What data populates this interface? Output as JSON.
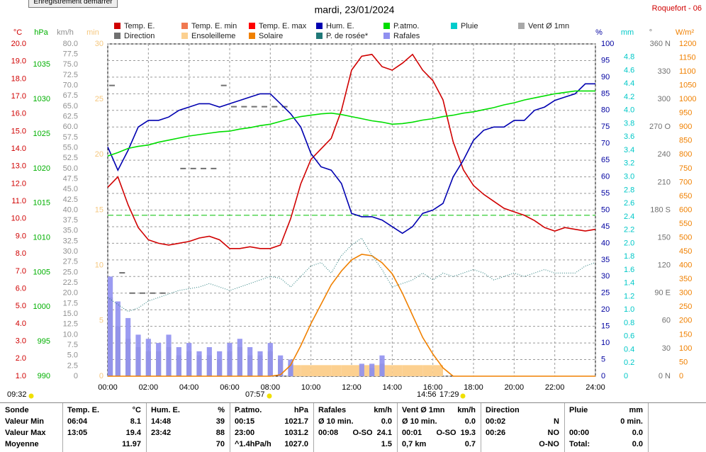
{
  "button": "Enregistrement demarrer",
  "station": "Roquefort - 06",
  "chart_data": {
    "type": "line",
    "title": "mardi, 23/01/2024",
    "x": [
      0,
      0.5,
      1,
      1.5,
      2,
      2.5,
      3,
      3.5,
      4,
      4.5,
      5,
      5.5,
      6,
      6.5,
      7,
      7.5,
      8,
      8.5,
      9,
      9.5,
      10,
      10.5,
      11,
      11.5,
      12,
      12.5,
      13,
      13.5,
      14,
      14.5,
      15,
      15.5,
      16,
      16.5,
      17,
      17.5,
      18,
      18.5,
      19,
      19.5,
      20,
      20.5,
      21,
      21.5,
      22,
      22.5,
      23,
      23.5,
      24
    ],
    "xlim": [
      0,
      24
    ],
    "xticks": [
      {
        "value": 0,
        "label": "00:00"
      },
      {
        "value": 2,
        "label": "02:00"
      },
      {
        "value": 4,
        "label": "04:00"
      },
      {
        "value": 6,
        "label": "06:00"
      },
      {
        "value": 8,
        "label": "08:00"
      },
      {
        "value": 10,
        "label": "10:00"
      },
      {
        "value": 12,
        "label": "12:00"
      },
      {
        "value": 14,
        "label": "14:00"
      },
      {
        "value": 16,
        "label": "16:00"
      },
      {
        "value": 18,
        "label": "18:00"
      },
      {
        "value": 20,
        "label": "20:00"
      },
      {
        "value": 22,
        "label": "22:00"
      },
      {
        "value": 24,
        "label": "24:00"
      }
    ],
    "grid": true,
    "axes": {
      "temp": {
        "label": "°C",
        "color": "#d00000",
        "lim": [
          1,
          20
        ],
        "ticks": [
          {
            "value": 1,
            "label": "1.0"
          },
          {
            "value": 2,
            "label": "2.0"
          },
          {
            "value": 3,
            "label": "3.0"
          },
          {
            "value": 4,
            "label": "4.0"
          },
          {
            "value": 5,
            "label": "5.0"
          },
          {
            "value": 6,
            "label": "6.0"
          },
          {
            "value": 7,
            "label": "7.0"
          },
          {
            "value": 8,
            "label": "8.0"
          },
          {
            "value": 9,
            "label": "9.0"
          },
          {
            "value": 10,
            "label": "10.0"
          },
          {
            "value": 11,
            "label": "11.0"
          },
          {
            "value": 12,
            "label": "12.0"
          },
          {
            "value": 13,
            "label": "13.0"
          },
          {
            "value": 14,
            "label": "14.0"
          },
          {
            "value": 15,
            "label": "15.0"
          },
          {
            "value": 16,
            "label": "16.0"
          },
          {
            "value": 17,
            "label": "17.0"
          },
          {
            "value": 18,
            "label": "18.0"
          },
          {
            "value": 19,
            "label": "19.0"
          },
          {
            "value": 20,
            "label": "20.0"
          }
        ]
      },
      "press": {
        "label": "hPa",
        "color": "#00b000",
        "lim": [
          990,
          1038
        ],
        "ticks": [
          990,
          995,
          1000,
          1005,
          1010,
          1015,
          1020,
          1025,
          1030,
          1035
        ]
      },
      "wind": {
        "label": "km/h",
        "color": "#909090",
        "lim": [
          0,
          80
        ],
        "ticks": [
          0,
          2.5,
          {
            "value": 5,
            "label": "5.0"
          },
          7.5,
          {
            "value": 10,
            "label": "10.0"
          },
          12.5,
          {
            "value": 15,
            "label": "15.0"
          },
          17.5,
          {
            "value": 20,
            "label": "20.0"
          },
          22.5,
          {
            "value": 25,
            "label": "25.0"
          },
          27.5,
          {
            "value": 30,
            "label": "30.0"
          },
          32.5,
          {
            "value": 35,
            "label": "35.0"
          },
          37.5,
          {
            "value": 40,
            "label": "40.0"
          },
          42.5,
          {
            "value": 45,
            "label": "45.0"
          },
          47.5,
          {
            "value": 50,
            "label": "50.0"
          },
          52.5,
          {
            "value": 55,
            "label": "55.0"
          },
          57.5,
          {
            "value": 60,
            "label": "60.0"
          },
          62.5,
          {
            "value": 65,
            "label": "65.0"
          },
          67.5,
          {
            "value": 70,
            "label": "70.0"
          },
          72.5,
          {
            "value": 75,
            "label": "75.0"
          },
          77.5,
          {
            "value": 80,
            "label": "80.0"
          }
        ]
      },
      "sun": {
        "label": "min",
        "color": "#f5c77e",
        "lim": [
          0,
          30
        ],
        "ticks": [
          0,
          5,
          10,
          15,
          20,
          25,
          30
        ]
      },
      "hum": {
        "label": "%",
        "color": "#0000a0",
        "lim": [
          0,
          100
        ],
        "ticks": [
          0,
          5,
          10,
          15,
          20,
          25,
          30,
          35,
          40,
          45,
          50,
          55,
          60,
          65,
          70,
          75,
          80,
          85,
          90,
          95,
          100
        ]
      },
      "rain": {
        "label": "mm",
        "color": "#00c8c8",
        "lim": [
          0,
          5
        ],
        "ticks": [
          0,
          0.2,
          0.4,
          0.6,
          0.8,
          {
            "value": 1,
            "label": "1.0"
          },
          1.2,
          1.4,
          1.6,
          1.8,
          {
            "value": 2,
            "label": "2.0"
          },
          2.2,
          2.4,
          2.6,
          2.8,
          {
            "value": 3,
            "label": "3.0"
          },
          3.2,
          3.4,
          3.6,
          3.8,
          {
            "value": 4,
            "label": "4.0"
          },
          4.2,
          4.4,
          4.6,
          4.8
        ]
      },
      "dir": {
        "label": "°",
        "color": "#707070",
        "lim": [
          0,
          360
        ],
        "ticks": [
          {
            "value": 0,
            "label": "0 N"
          },
          30,
          60,
          {
            "value": 90,
            "label": "90 E"
          },
          120,
          150,
          {
            "value": 180,
            "label": "180 S"
          },
          210,
          240,
          {
            "value": 270,
            "label": "270 O"
          },
          300,
          330,
          {
            "value": 360,
            "label": "360 N"
          }
        ]
      },
      "solar": {
        "label": "W/m²",
        "color": "#f08000",
        "lim": [
          0,
          1200
        ],
        "ticks": [
          0,
          50,
          100,
          150,
          200,
          250,
          300,
          350,
          400,
          450,
          500,
          550,
          600,
          650,
          700,
          750,
          800,
          850,
          900,
          950,
          1000,
          1050,
          1100,
          1150,
          1200
        ]
      }
    },
    "series": [
      {
        "name": "Temp. E.",
        "color": "#d00000",
        "axis": "temp",
        "style": "line",
        "values": [
          11.8,
          12.4,
          10.8,
          9.5,
          8.8,
          8.6,
          8.5,
          8.6,
          8.7,
          8.9,
          9.0,
          8.8,
          8.3,
          8.3,
          8.4,
          8.3,
          8.3,
          8.5,
          10.0,
          12.0,
          13.4,
          14.0,
          14.6,
          16.2,
          18.5,
          19.3,
          19.4,
          18.7,
          18.5,
          18.9,
          19.4,
          18.5,
          17.9,
          16.8,
          14.4,
          12.8,
          11.9,
          11.4,
          11.0,
          10.6,
          10.4,
          10.2,
          9.9,
          9.5,
          9.3,
          9.5,
          9.4,
          9.3,
          9.4
        ]
      },
      {
        "name": "Temp. E. min",
        "color": "#f07850"
      },
      {
        "name": "Temp. E. max",
        "color": "#ff0000"
      },
      {
        "name": "Hum. E.",
        "color": "#0000b0",
        "axis": "hum",
        "style": "line",
        "values": [
          69,
          62,
          68,
          75,
          77,
          77,
          78,
          80,
          81,
          82,
          82,
          81,
          82,
          83,
          84,
          85,
          85,
          82,
          79,
          75,
          67,
          63,
          62,
          58,
          49,
          48,
          48,
          47,
          45,
          43,
          45,
          49,
          50,
          52,
          60,
          65,
          71,
          74,
          75,
          75,
          77,
          77,
          80,
          81,
          83,
          84,
          85,
          88,
          88
        ]
      },
      {
        "name": "P.atmo.",
        "color": "#00dd00",
        "axis": "press",
        "style": "line",
        "values": [
          1021.8,
          1022.3,
          1022.9,
          1023.2,
          1023.4,
          1023.8,
          1024.1,
          1024.4,
          1024.7,
          1024.9,
          1025.1,
          1025.3,
          1025.4,
          1025.7,
          1025.9,
          1026.2,
          1026.4,
          1026.8,
          1027.2,
          1027.5,
          1027.7,
          1027.9,
          1028.0,
          1027.8,
          1027.5,
          1027.2,
          1026.9,
          1026.7,
          1026.4,
          1026.5,
          1026.7,
          1027.0,
          1027.2,
          1027.5,
          1027.7,
          1028.0,
          1028.2,
          1028.5,
          1028.8,
          1029.2,
          1029.5,
          1029.9,
          1030.2,
          1030.5,
          1030.8,
          1031.0,
          1031.2,
          1031.2,
          1031.2
        ]
      },
      {
        "name": "Pluie",
        "color": "#00cccc"
      },
      {
        "name": "Vent Ø 1mn",
        "color": "#a8a8a8",
        "axis": "wind",
        "style": "bars",
        "values": [
          19,
          12,
          9,
          7,
          6,
          6,
          7,
          5,
          6,
          5,
          5,
          4,
          6,
          7,
          5,
          5,
          6,
          4,
          3,
          0,
          0,
          0,
          0,
          0,
          0,
          0,
          2,
          3,
          0,
          0,
          0,
          0,
          0,
          0,
          0,
          0,
          0,
          0,
          0,
          0,
          0,
          0,
          0,
          0,
          0,
          0,
          0,
          0,
          0
        ]
      },
      {
        "name": "Direction",
        "color": "#707070",
        "axis": "dir",
        "style": "dashes",
        "values": [
          315,
          112,
          90,
          90,
          90,
          90,
          null,
          225,
          225,
          225,
          225,
          315,
          292,
          292,
          292,
          292,
          292,
          292,
          null,
          null,
          null,
          null,
          null,
          null,
          null,
          null,
          null,
          null,
          null,
          null,
          null,
          null,
          null,
          null,
          null,
          null,
          null,
          null,
          null,
          null,
          null,
          null,
          null,
          null,
          null,
          null,
          null,
          null,
          null
        ]
      },
      {
        "name": "Ensoleilleme",
        "color": "#fcd090",
        "axis": "sun",
        "style": "blocks",
        "values": [
          0,
          0,
          0,
          0,
          0,
          0,
          0,
          0,
          0,
          0,
          0,
          0,
          0,
          0,
          0,
          0,
          0,
          0,
          1,
          1,
          1,
          1,
          1,
          1,
          1,
          1,
          1,
          1,
          1,
          1,
          1,
          1,
          1,
          0,
          0,
          0,
          0,
          0,
          0,
          0,
          0,
          0,
          0,
          0,
          0,
          0,
          0,
          0,
          0
        ]
      },
      {
        "name": "Solaire",
        "color": "#f08000",
        "axis": "solar",
        "style": "line",
        "values": [
          0,
          0,
          0,
          0,
          0,
          0,
          0,
          0,
          0,
          0,
          0,
          0,
          0,
          0,
          0,
          0,
          0,
          5,
          40,
          110,
          190,
          260,
          330,
          380,
          420,
          440,
          435,
          410,
          370,
          300,
          220,
          140,
          80,
          30,
          0,
          0,
          0,
          0,
          0,
          0,
          0,
          0,
          0,
          0,
          0,
          0,
          0,
          0,
          0
        ]
      },
      {
        "name": "P. de rosée*",
        "color": "#207878",
        "axis": "temp",
        "style": "dotted",
        "values": [
          5.5,
          5.1,
          4.7,
          4.9,
          5.3,
          5.5,
          5.7,
          5.9,
          6.0,
          6.1,
          6.3,
          6.1,
          5.9,
          6.1,
          6.3,
          6.5,
          6.7,
          6.6,
          6.1,
          6.7,
          7.3,
          7.5,
          6.9,
          7.9,
          8.5,
          8.9,
          7.9,
          7.1,
          6.1,
          6.3,
          6.5,
          6.9,
          6.5,
          6.9,
          6.7,
          6.9,
          7.1,
          6.9,
          6.5,
          6.7,
          6.9,
          6.7,
          6.9,
          7.1,
          6.9,
          6.9,
          6.9,
          7.3,
          7.5
        ]
      },
      {
        "name": "Rafales",
        "color": "#9090f0",
        "axis": "wind",
        "style": "bars",
        "values": [
          24,
          18,
          14,
          10,
          9,
          8,
          10,
          7,
          8,
          6,
          7,
          6,
          8,
          9,
          7,
          6,
          8,
          5,
          4,
          0,
          0,
          0,
          0,
          0,
          0,
          3,
          3,
          5,
          0,
          0,
          0,
          0,
          0,
          0,
          0,
          0,
          0,
          0,
          0,
          0,
          0,
          0,
          0,
          0,
          0,
          0,
          0,
          0,
          0
        ]
      }
    ],
    "reference_line": {
      "axis": "press",
      "value": 1013.25,
      "color": "#00c000"
    },
    "annotations": [
      "09:32",
      "07:57",
      "14:56",
      "17:29"
    ]
  },
  "table": {
    "corner": "Sonde",
    "columns": [
      {
        "title": "Temp. E.",
        "unit": "°C"
      },
      {
        "title": "Hum. E.",
        "unit": "%"
      },
      {
        "title": "P.atmo.",
        "unit": "hPa"
      },
      {
        "title": "Rafales",
        "unit": "km/h"
      },
      {
        "title": "Vent Ø 1mn",
        "unit": "km/h"
      },
      {
        "title": "Direction"
      },
      {
        "title": "Pluie",
        "unit": "mm"
      }
    ],
    "rows": [
      {
        "label": "Valeur Min",
        "cells": [
          [
            "06:04",
            "8.1"
          ],
          [
            "14:48",
            "39"
          ],
          [
            "00:15",
            "1021.7"
          ],
          [
            "Ø 10 min.",
            "0.0"
          ],
          [
            "Ø 10 min.",
            "0.0"
          ],
          [
            "00:02",
            "N"
          ],
          [
            "0 min."
          ]
        ]
      },
      {
        "label": "Valeur Max",
        "cells": [
          [
            "13:05",
            "19.4"
          ],
          [
            "23:42",
            "88"
          ],
          [
            "23:00",
            "1031.2"
          ],
          [
            "00:08",
            "O-SO",
            "24.1"
          ],
          [
            "00:01",
            "O-SO",
            "19.3"
          ],
          [
            "00:26",
            "NO"
          ],
          [
            "00:00",
            "0.0"
          ]
        ]
      },
      {
        "label": "Moyenne",
        "cells": [
          [
            "11.97"
          ],
          [
            "70"
          ],
          [
            "^1.4hPa/h",
            "1027.0"
          ],
          [
            "1.5"
          ],
          [
            "0,7 km",
            "0.7"
          ],
          [
            "O-NO"
          ],
          [
            "Total:",
            "0.0"
          ]
        ]
      }
    ]
  }
}
